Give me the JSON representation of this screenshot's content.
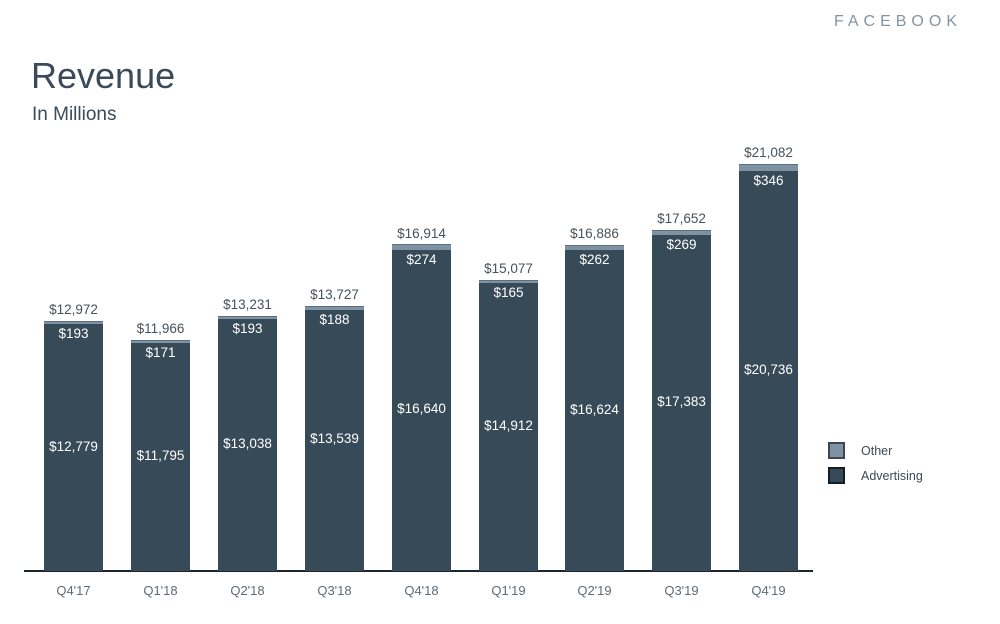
{
  "brand": "FACEBOOK",
  "header": {
    "title": "Revenue",
    "subtitle": "In Millions"
  },
  "legend": {
    "items": [
      {
        "label": "Other",
        "fill": "#7e92a3",
        "border": "#3c4750"
      },
      {
        "label": "Advertising",
        "fill": "#374a57",
        "border": "#121d27"
      }
    ]
  },
  "colors": {
    "advertising_bar": "#374a57",
    "other_segment": "#7e92a3",
    "axis_line": "#1c2630",
    "total_label": "#46525d",
    "inside_label": "#ffffff",
    "brand_text": "#8494a2",
    "title_text": "#3b4a59"
  },
  "chart_data": {
    "type": "bar",
    "stacked": true,
    "title": "Revenue",
    "subtitle": "In Millions",
    "unit": "USD millions",
    "grid": false,
    "legend_position": "right",
    "categories": [
      "Q4'17",
      "Q1'18",
      "Q2'18",
      "Q3'18",
      "Q4'18",
      "Q1'19",
      "Q2'19",
      "Q3'19",
      "Q4'19"
    ],
    "series": [
      {
        "name": "Advertising",
        "color": "#374a57",
        "values": [
          12779,
          11795,
          13038,
          13539,
          16640,
          14912,
          16624,
          17383,
          20736
        ]
      },
      {
        "name": "Other",
        "color": "#7e92a3",
        "values": [
          193,
          171,
          193,
          188,
          274,
          165,
          262,
          269,
          346
        ]
      }
    ],
    "totals": [
      12972,
      11966,
      13231,
      13727,
      16914,
      15077,
      16886,
      17652,
      21082
    ],
    "ylim": [
      0,
      21082
    ],
    "value_prefix": "$"
  }
}
